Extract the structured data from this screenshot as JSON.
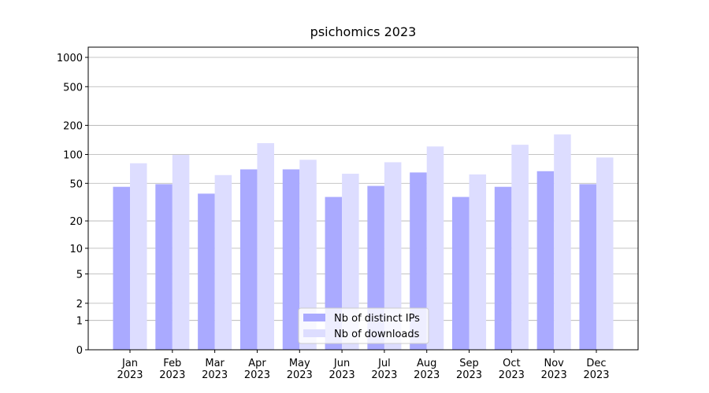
{
  "chart_data": {
    "type": "bar",
    "title": "psichomics 2023",
    "categories": [
      [
        "Jan",
        "2023"
      ],
      [
        "Feb",
        "2023"
      ],
      [
        "Mar",
        "2023"
      ],
      [
        "Apr",
        "2023"
      ],
      [
        "May",
        "2023"
      ],
      [
        "Jun",
        "2023"
      ],
      [
        "Jul",
        "2023"
      ],
      [
        "Aug",
        "2023"
      ],
      [
        "Sep",
        "2023"
      ],
      [
        "Oct",
        "2023"
      ],
      [
        "Nov",
        "2023"
      ],
      [
        "Dec",
        "2023"
      ]
    ],
    "series": [
      {
        "name": "Nb of distinct IPs",
        "color": "#aaaaff",
        "values": [
          46,
          49,
          39,
          70,
          70,
          36,
          47,
          65,
          36,
          46,
          67,
          49
        ]
      },
      {
        "name": "Nb of downloads",
        "color": "#ddddff",
        "values": [
          81,
          99,
          61,
          131,
          88,
          63,
          83,
          121,
          62,
          126,
          161,
          93
        ]
      }
    ],
    "yscale": "log1p",
    "ylim": [
      0,
      1273
    ],
    "yticks": [
      0,
      1,
      2,
      5,
      10,
      20,
      50,
      100,
      200,
      500,
      1000
    ],
    "grid": true,
    "legend": "lower center"
  }
}
